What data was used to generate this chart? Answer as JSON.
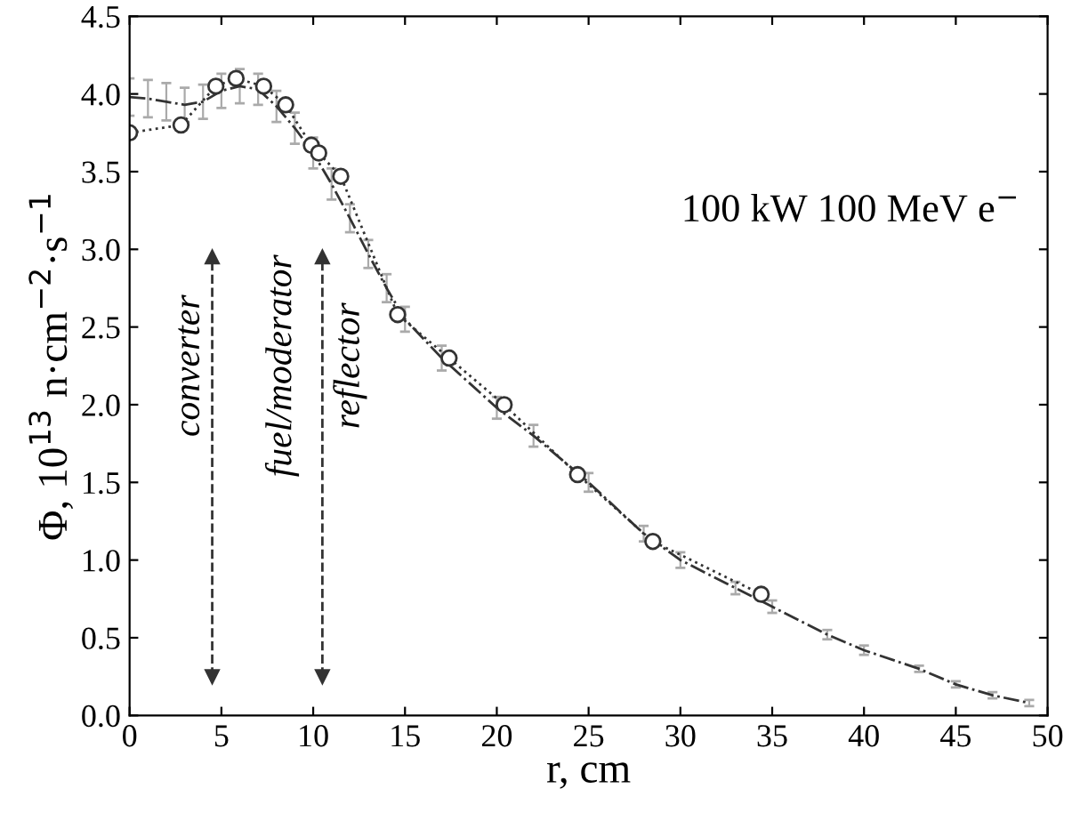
{
  "chart_data": {
    "type": "line",
    "xlabel": "r, cm",
    "ylabel": "Φ, 10$^{13}$ n·cm$^{−2}$·s$^{−1}$",
    "xlim": [
      0,
      50
    ],
    "ylim": [
      0,
      4.5
    ],
    "xticks": [
      0,
      5,
      10,
      15,
      20,
      25,
      30,
      35,
      40,
      45,
      50
    ],
    "yticks": [
      {
        "value": 0,
        "label": "0.0"
      },
      0.5,
      {
        "value": 1,
        "label": "1.0"
      },
      1.5,
      {
        "value": 2,
        "label": "2.0"
      },
      2.5,
      {
        "value": 3,
        "label": "3.0"
      },
      3.5,
      {
        "value": 4,
        "label": "4.0"
      },
      4.5
    ],
    "series": [
      {
        "color": "#333333",
        "line_style": "dashed",
        "marker": "none",
        "x": [
          0,
          1,
          2,
          3,
          4,
          5,
          6,
          7,
          8,
          9,
          10,
          11,
          12,
          13,
          14,
          15,
          17,
          20,
          22,
          25,
          28,
          30,
          33,
          35,
          38,
          40,
          43,
          45,
          47,
          49
        ],
        "values": [
          3.98,
          3.97,
          3.95,
          3.93,
          3.95,
          4.02,
          4.05,
          4.03,
          3.92,
          3.78,
          3.62,
          3.42,
          3.2,
          2.97,
          2.75,
          2.55,
          2.3,
          1.98,
          1.8,
          1.5,
          1.17,
          1.0,
          0.82,
          0.7,
          0.52,
          0.42,
          0.3,
          0.2,
          0.13,
          0.08
        ],
        "errors": [
          0.12,
          0.12,
          0.12,
          0.11,
          0.11,
          0.11,
          0.11,
          0.1,
          0.1,
          0.1,
          0.1,
          0.1,
          0.09,
          0.09,
          0.09,
          0.08,
          0.08,
          0.07,
          0.07,
          0.06,
          0.05,
          0.05,
          0.04,
          0.04,
          0.03,
          0.03,
          0.02,
          0.02,
          0.02,
          0.02
        ]
      },
      {
        "color": "#333333",
        "line_style": "dotted",
        "marker": "circle",
        "x": [
          0,
          2.8,
          4.7,
          5.8,
          7.3,
          8.5,
          9.9,
          10.3,
          11.5,
          14.6,
          17.4,
          20.4,
          24.4,
          28.5,
          34.4
        ],
        "values": [
          3.75,
          3.8,
          4.05,
          4.1,
          4.05,
          3.93,
          3.67,
          3.62,
          3.47,
          2.58,
          2.3,
          2.0,
          1.55,
          1.12,
          0.78
        ]
      }
    ],
    "annotations": [
      "100 kW 100 MeV e$^{−}$",
      "converter",
      "fuel/moderator",
      "reflector"
    ],
    "ref_lines": [
      {
        "axis": "x",
        "value": 4.5,
        "label": null,
        "line_style": "dashed",
        "color": "#333333"
      },
      {
        "axis": "x",
        "value": 10.5,
        "label": null,
        "line_style": "dashed",
        "color": "#333333"
      }
    ],
    "grid": false,
    "legend": false
  }
}
